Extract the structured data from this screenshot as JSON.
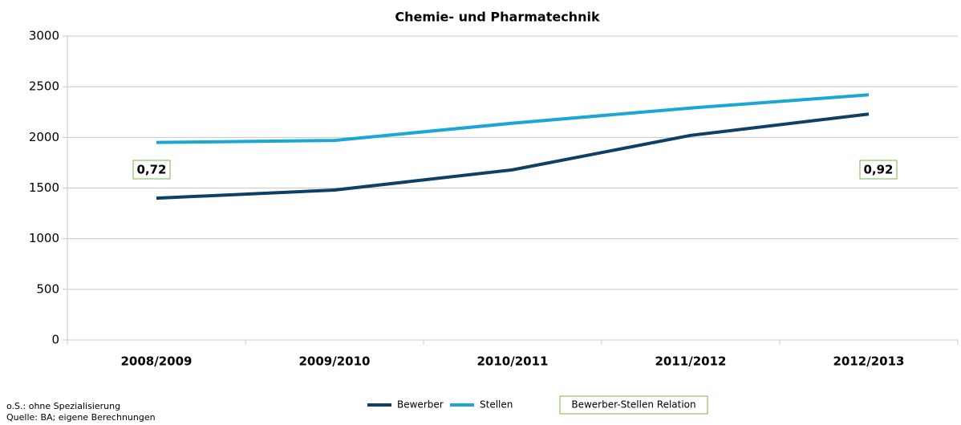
{
  "chart_data": {
    "type": "line",
    "title": "Chemie- und Pharmatechnik",
    "categories": [
      "2008/2009",
      "2009/2010",
      "2010/2011",
      "2011/2012",
      "2012/2013"
    ],
    "series": [
      {
        "name": "Bewerber",
        "color": "#0e3f64",
        "values": [
          1400,
          1480,
          1680,
          2020,
          2230
        ]
      },
      {
        "name": "Stellen",
        "color": "#1aa7d4",
        "values": [
          1950,
          1970,
          2140,
          2290,
          2420
        ]
      }
    ],
    "relation": {
      "name": "Bewerber-Stellen Relation",
      "color": "#7ab648",
      "labels": [
        "0,72",
        null,
        null,
        null,
        "0,92"
      ]
    },
    "ylim": [
      0,
      3000
    ],
    "yticks": [
      0,
      500,
      1000,
      1500,
      2000,
      2500,
      3000
    ],
    "grid": true,
    "footnotes": [
      "o.S.: ohne Spezialisierung",
      "Quelle: BA; eigene Berechnungen"
    ]
  }
}
